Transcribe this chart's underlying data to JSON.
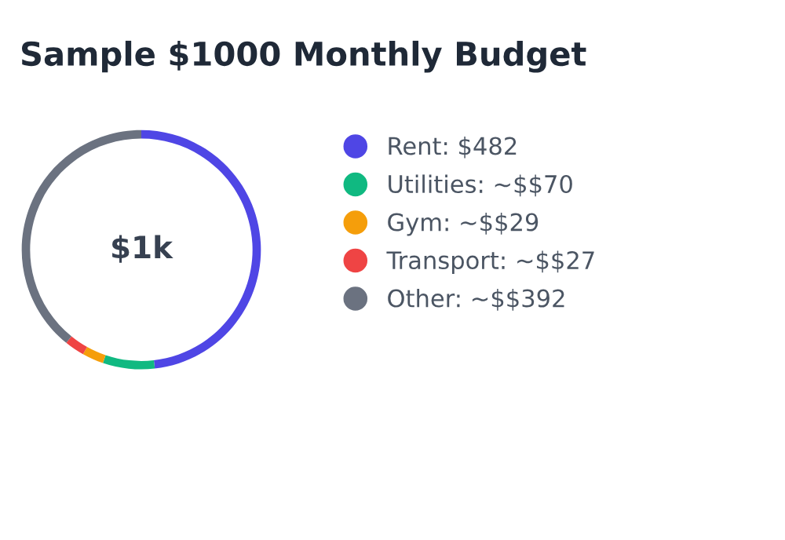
{
  "chart_data": {
    "type": "donut",
    "title": "Sample $1000 Monthly Budget",
    "categories": [
      "Rent: $482",
      "Utilities: ~$$70",
      "Gym: ~$$29",
      "Transport: ~$$27",
      "Other: ~$$392"
    ],
    "values": [
      482,
      70,
      29,
      27,
      392
    ],
    "colors": [
      "#4f46e5",
      "#10b981",
      "#f59e0b",
      "#ef4444",
      "#6b7280"
    ],
    "annotations": [
      "$1k"
    ],
    "legend": "right"
  }
}
